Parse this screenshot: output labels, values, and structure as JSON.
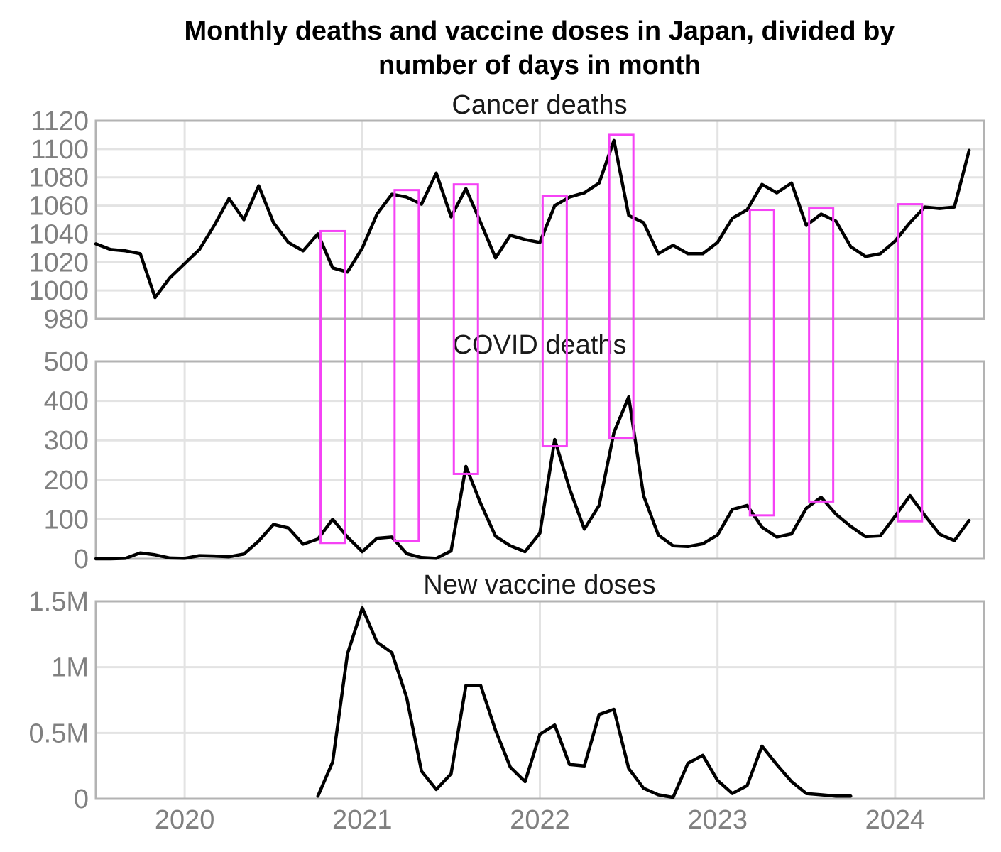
{
  "title_line1": "Monthly deaths and vaccine doses in Japan, divided by",
  "title_line2": "number of days in month",
  "colors": {
    "line": "#000000",
    "highlight": "#f542f5",
    "grid": "#e3e3e3",
    "frame": "#b3b3b3",
    "tick": "#808080"
  },
  "chart_data": [
    {
      "type": "line",
      "title": "Cancer deaths",
      "x_start": "2019-12",
      "xlim": [
        "2019-12",
        "2024-12"
      ],
      "ylim": [
        980,
        1120
      ],
      "yticks": [
        980,
        1000,
        1020,
        1040,
        1060,
        1080,
        1100,
        1120
      ],
      "ytick_labels": [
        "980",
        "1000",
        "1020",
        "1040",
        "1060",
        "1080",
        "1100",
        "1120"
      ],
      "values": [
        1033,
        1029,
        1028,
        1026,
        995,
        1009,
        1019,
        1029,
        1046,
        1065,
        1050,
        1074,
        1048,
        1034,
        1028,
        1040,
        1016,
        1013,
        1030,
        1054,
        1068,
        1066,
        1061,
        1083,
        1052,
        1072,
        1048,
        1023,
        1039,
        1036,
        1034,
        1060,
        1066,
        1069,
        1076,
        1106,
        1053,
        1048,
        1026,
        1032,
        1026,
        1026,
        1034,
        1051,
        1057,
        1075,
        1069,
        1076,
        1046,
        1054,
        1049,
        1031,
        1024,
        1026,
        1035,
        1048,
        1059,
        1058,
        1059,
        1099
      ]
    },
    {
      "type": "line",
      "title": "COVID deaths",
      "x_start": "2019-12",
      "xlim": [
        "2019-12",
        "2024-12"
      ],
      "ylim": [
        0,
        500
      ],
      "yticks": [
        0,
        100,
        200,
        300,
        400,
        500
      ],
      "ytick_labels": [
        "0",
        "100",
        "200",
        "300",
        "400",
        "500"
      ],
      "values": [
        0,
        0,
        1,
        15,
        10,
        2,
        1,
        8,
        7,
        5,
        12,
        45,
        87,
        78,
        37,
        50,
        100,
        55,
        18,
        52,
        55,
        13,
        3,
        1,
        20,
        234,
        140,
        57,
        33,
        18,
        65,
        302,
        178,
        75,
        135,
        320,
        410,
        160,
        60,
        33,
        31,
        38,
        60,
        125,
        135,
        80,
        55,
        63,
        128,
        156,
        113,
        82,
        56,
        58,
        108,
        160,
        110,
        62,
        46,
        97
      ]
    },
    {
      "type": "line",
      "title": "New vaccine doses",
      "x_start": "2019-12",
      "xlim": [
        "2019-12",
        "2024-12"
      ],
      "ylim": [
        0,
        1500000
      ],
      "yticks": [
        0,
        500000,
        1000000,
        1500000
      ],
      "ytick_labels": [
        "0",
        "0.5M",
        "1M",
        "1.5M"
      ],
      "values": [
        null,
        null,
        null,
        null,
        null,
        null,
        null,
        null,
        null,
        null,
        null,
        null,
        null,
        null,
        null,
        20000,
        280000,
        1100000,
        1450000,
        1190000,
        1110000,
        770000,
        210000,
        70000,
        190000,
        860000,
        860000,
        520000,
        240000,
        130000,
        490000,
        560000,
        260000,
        250000,
        640000,
        680000,
        230000,
        80000,
        30000,
        10000,
        270000,
        330000,
        140000,
        40000,
        100000,
        400000,
        260000,
        130000,
        40000,
        30000,
        20000,
        20000,
        null,
        null,
        null,
        null,
        null,
        null,
        null,
        null
      ]
    }
  ],
  "x_axis": {
    "tick_labels": [
      "2020",
      "2021",
      "2022",
      "2023",
      "2024"
    ],
    "tick_months": [
      "2020-06",
      "2021-06",
      "2022-06",
      "2023-06",
      "2024-06"
    ]
  },
  "highlights": [
    {
      "month_index": 16,
      "cancer_y": [
        980,
        1042
      ],
      "covid_y": [
        40,
        500
      ]
    },
    {
      "month_index": 21,
      "cancer_y": [
        980,
        1071
      ],
      "covid_y": [
        45,
        500
      ]
    },
    {
      "month_index": 25,
      "cancer_y": [
        980,
        1075
      ],
      "covid_y": [
        215,
        500
      ]
    },
    {
      "month_index": 31,
      "cancer_y": [
        980,
        1067
      ],
      "covid_y": [
        285,
        500
      ]
    },
    {
      "month_index": 35.5,
      "cancer_y": [
        980,
        1110
      ],
      "covid_y": [
        305,
        500
      ]
    },
    {
      "month_index": 45,
      "cancer_y": [
        980,
        1057
      ],
      "covid_y": [
        110,
        500
      ]
    },
    {
      "month_index": 49,
      "cancer_y": [
        980,
        1058
      ],
      "covid_y": [
        145,
        500
      ]
    },
    {
      "month_index": 55,
      "cancer_y": [
        980,
        1061
      ],
      "covid_y": [
        95,
        500
      ]
    }
  ]
}
